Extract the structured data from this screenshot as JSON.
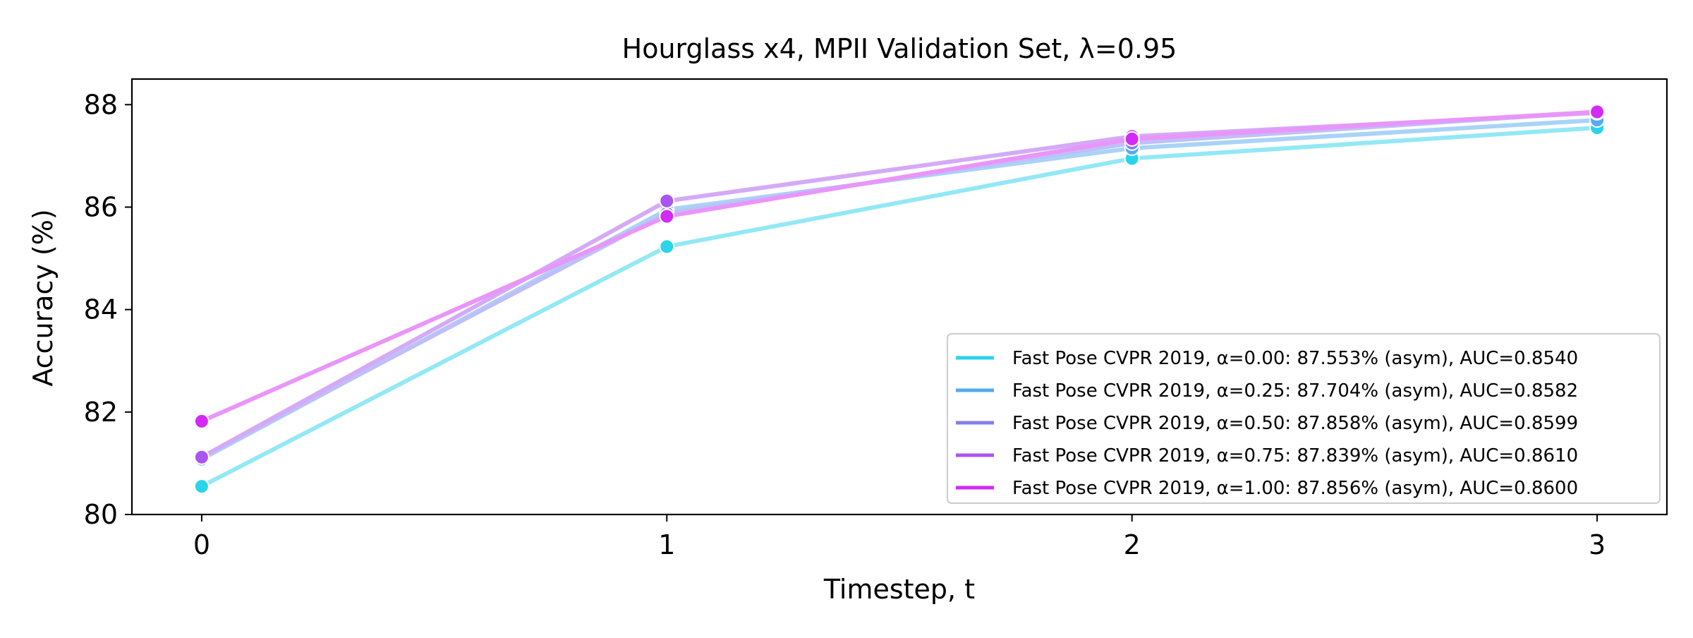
{
  "chart_data": {
    "type": "line",
    "title": "Hourglass x4, MPII Validation Set, λ=0.95",
    "xlabel": "Timestep, t",
    "ylabel": "Accuracy (%)",
    "x": [
      0,
      1,
      2,
      3
    ],
    "xticks": [
      0,
      1,
      2,
      3
    ],
    "xlim": [
      -0.15,
      3.15
    ],
    "yticks": [
      80,
      82,
      84,
      86,
      88
    ],
    "ylim": [
      80.0,
      88.5
    ],
    "grid": false,
    "legend_position": "lower-right",
    "series": [
      {
        "name": "Fast Pose CVPR 2019, α=0.00: 87.553% (asym), AUC=0.8540",
        "values": [
          80.55,
          85.23,
          86.95,
          87.55
        ],
        "color": "#2ad4ea",
        "line_color": "#93e8f5"
      },
      {
        "name": "Fast Pose CVPR 2019, α=0.25: 87.704% (asym), AUC=0.8582",
        "values": [
          81.08,
          85.95,
          87.15,
          87.7
        ],
        "color": "#55aaf0",
        "line_color": "#a9d3f7"
      },
      {
        "name": "Fast Pose CVPR 2019, α=0.50: 87.858% (asym), AUC=0.8599",
        "values": [
          81.12,
          85.88,
          87.25,
          87.86
        ],
        "color": "#8080f0",
        "line_color": "#bfbff7"
      },
      {
        "name": "Fast Pose CVPR 2019, α=0.75: 87.839% (asym), AUC=0.8610",
        "values": [
          81.12,
          86.12,
          87.38,
          87.84
        ],
        "color": "#aa55f0",
        "line_color": "#d4aaf7"
      },
      {
        "name": "Fast Pose CVPR 2019, α=1.00: 87.856% (asym), AUC=0.8600",
        "values": [
          81.82,
          85.82,
          87.33,
          87.86
        ],
        "color": "#d42af5",
        "line_color": "#e995f9"
      }
    ]
  }
}
